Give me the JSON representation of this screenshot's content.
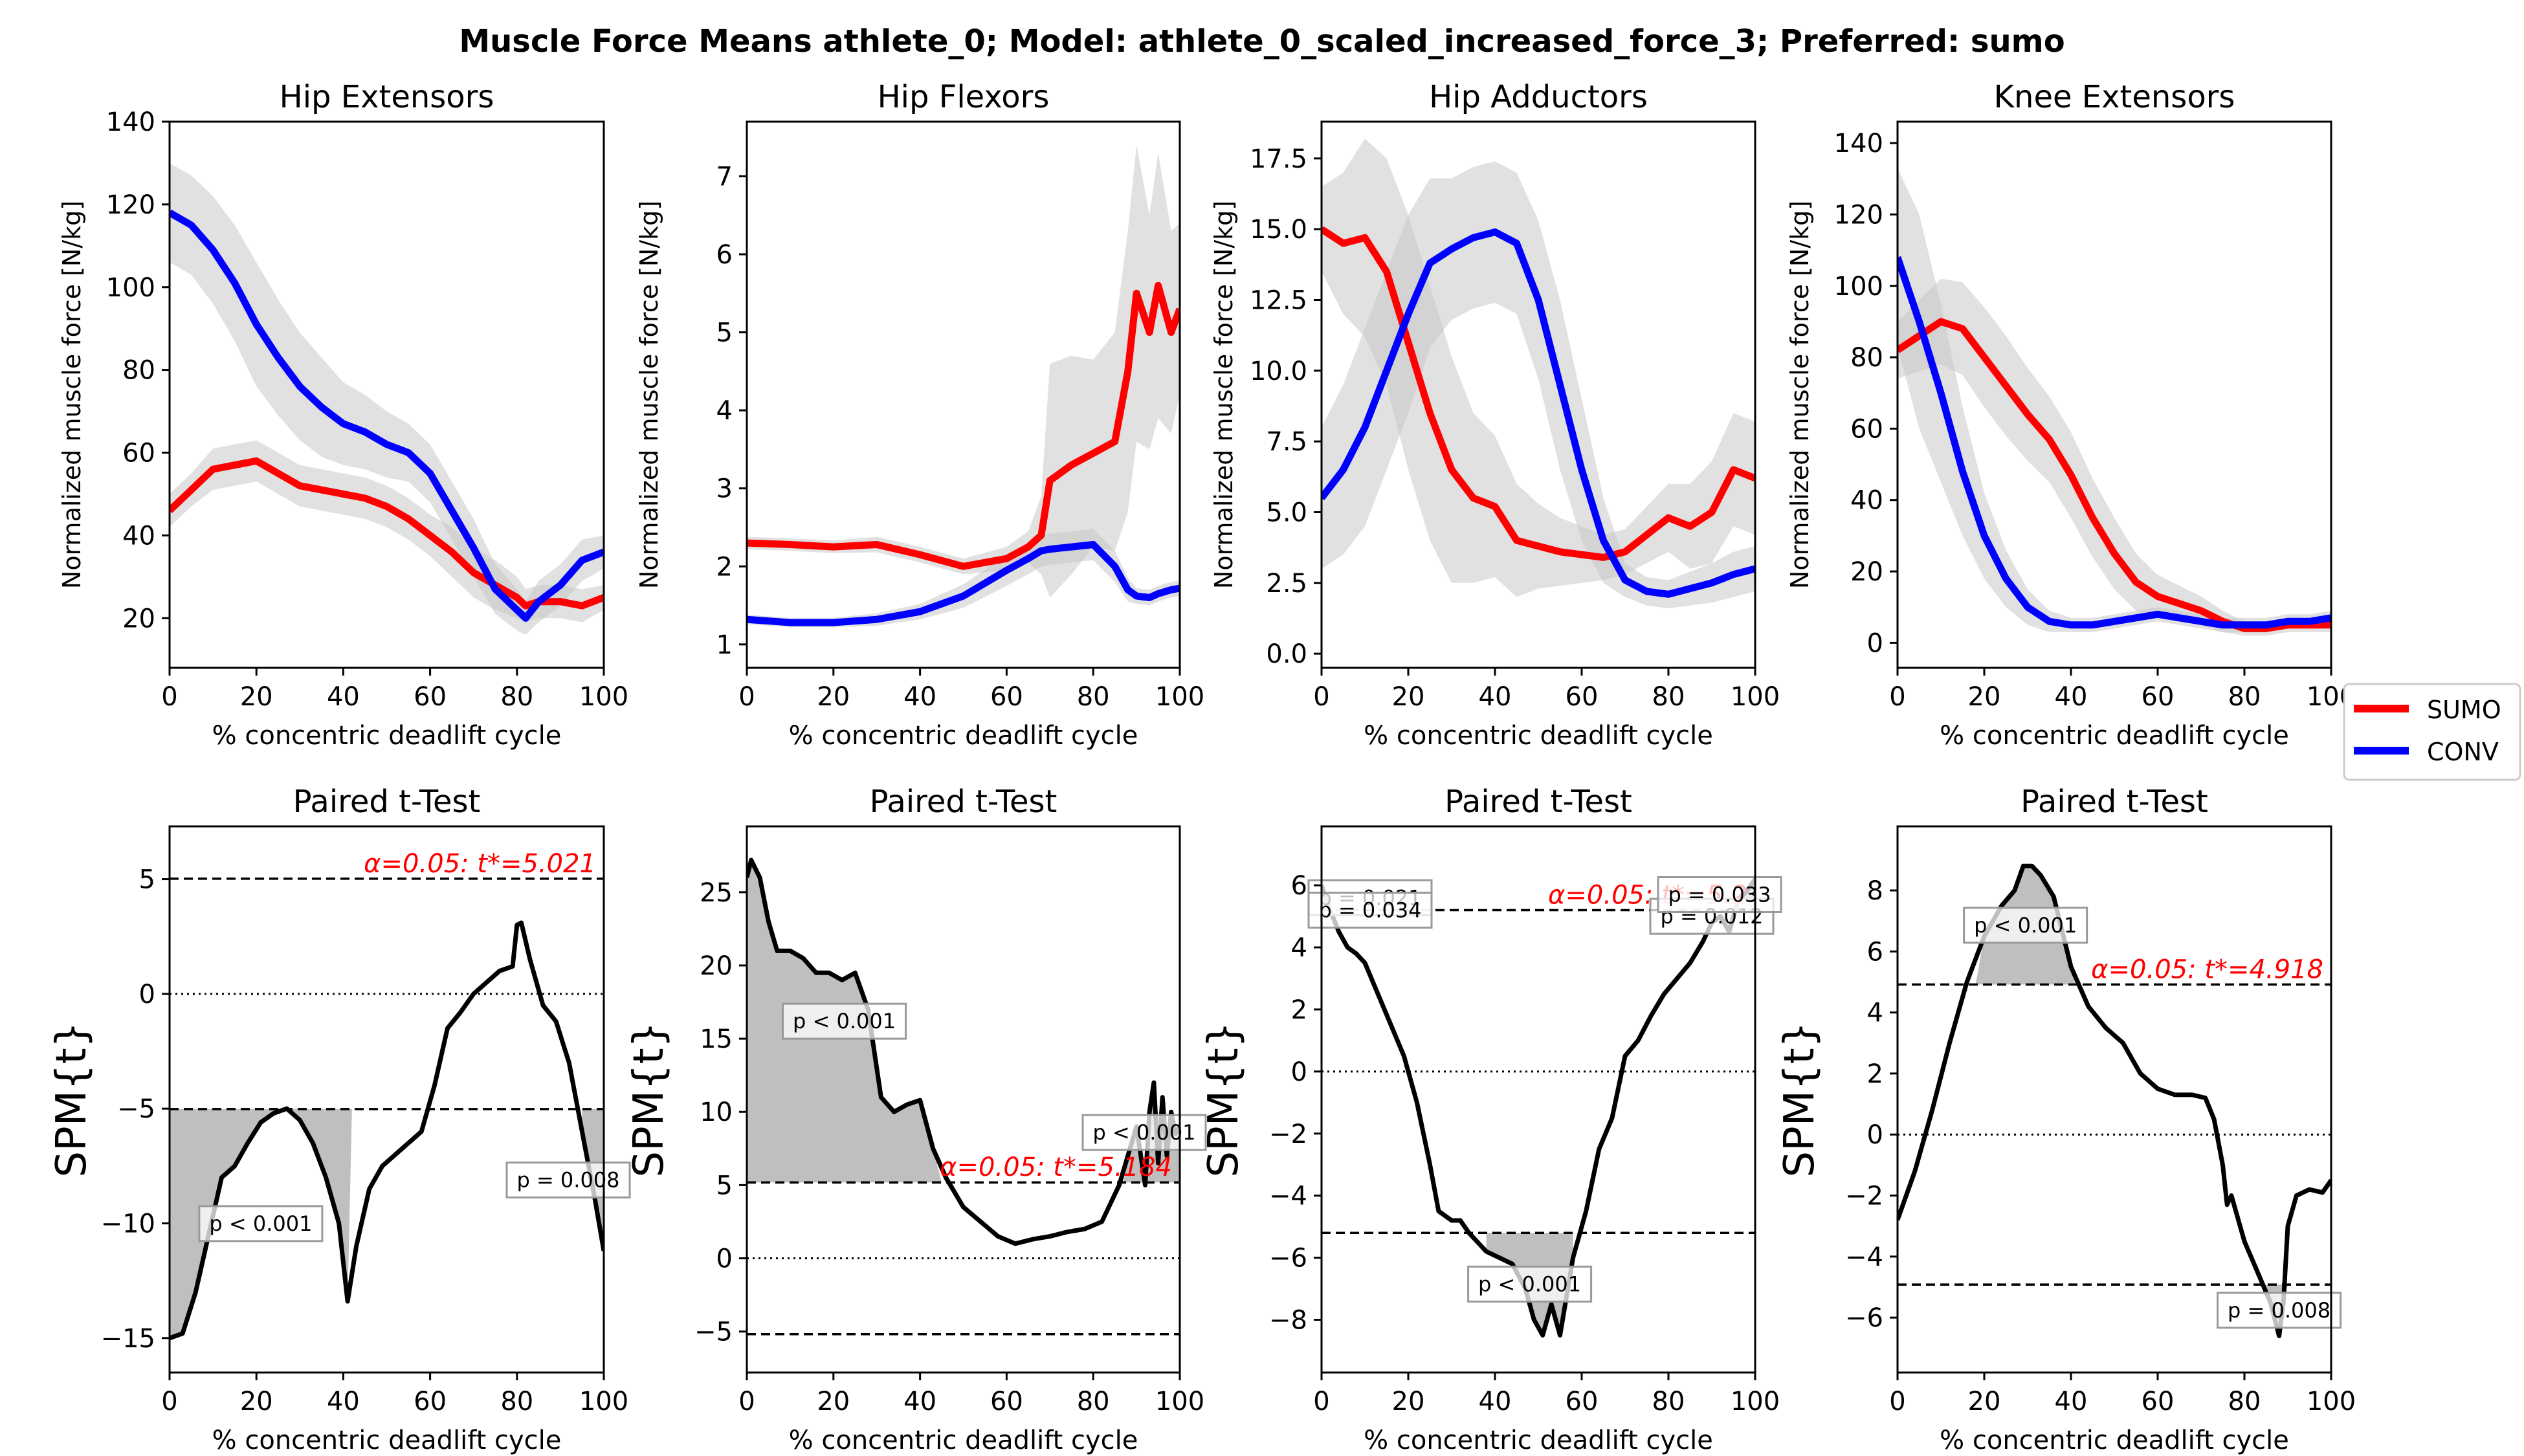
{
  "figure": {
    "title": "Muscle Force Means athlete_0; Model: athlete_0_scaled_increased_force_3; Preferred: sumo"
  },
  "legend": {
    "position": "right-center",
    "entries": [
      {
        "label": "SUMO",
        "color": "#ff0000"
      },
      {
        "label": "CONV",
        "color": "#0000ff"
      }
    ]
  },
  "colors": {
    "sumo": "#ff0000",
    "conv": "#0000ff",
    "band": "#c8c8c8",
    "spm": "#000000",
    "threshold_text": "#ff0000",
    "cluster_fill": "#bfbfbf"
  },
  "chart_data": [
    {
      "type": "line",
      "title": "Hip Extensors",
      "xlabel": "% concentric deadlift cycle",
      "ylabel": "Normalized muscle force [N/kg]",
      "xlim": [
        0,
        100
      ],
      "ylim": [
        8,
        140
      ],
      "xticks": [
        0,
        20,
        40,
        60,
        80,
        100
      ],
      "yticks": [
        20,
        40,
        60,
        80,
        100,
        120,
        140
      ],
      "ytick_labels": [
        "20",
        "40",
        "60",
        "80",
        "100",
        "120",
        "140"
      ],
      "x": [
        0,
        5,
        10,
        15,
        20,
        25,
        30,
        35,
        40,
        45,
        50,
        55,
        60,
        65,
        70,
        75,
        80,
        82,
        85,
        90,
        95,
        100
      ],
      "series": [
        {
          "name": "SUMO",
          "color": "#ff0000",
          "values": [
            46,
            51,
            56,
            57,
            58,
            55,
            52,
            51,
            50,
            49,
            47,
            44,
            40,
            36,
            31,
            28,
            25,
            23,
            24,
            24,
            23,
            25
          ],
          "sd_band": [
            4,
            4,
            5,
            5,
            5,
            5,
            5,
            5,
            5,
            5,
            5,
            5,
            5,
            6,
            6,
            6,
            5,
            4,
            4,
            4,
            4,
            3
          ]
        },
        {
          "name": "CONV",
          "color": "#0000ff",
          "values": [
            118,
            115,
            109,
            101,
            91,
            83,
            76,
            71,
            67,
            65,
            62,
            60,
            55,
            46,
            37,
            27,
            22,
            20,
            24,
            28,
            34,
            36
          ],
          "sd_band": [
            12,
            12,
            13,
            14,
            15,
            14,
            13,
            12,
            10,
            9,
            8,
            7,
            7,
            7,
            7,
            6,
            5,
            4,
            5,
            5,
            5,
            4
          ]
        }
      ]
    },
    {
      "type": "line",
      "title": "Hip Flexors",
      "xlabel": "% concentric deadlift cycle",
      "ylabel": "Normalized muscle force [N/kg]",
      "xlim": [
        0,
        100
      ],
      "ylim": [
        0.7,
        7.7
      ],
      "xticks": [
        0,
        20,
        40,
        60,
        80,
        100
      ],
      "yticks": [
        1,
        2,
        3,
        4,
        5,
        6,
        7
      ],
      "ytick_labels": [
        "1",
        "2",
        "3",
        "4",
        "5",
        "6",
        "7"
      ],
      "x": [
        0,
        10,
        20,
        30,
        40,
        50,
        60,
        65,
        68,
        70,
        75,
        80,
        85,
        88,
        90,
        93,
        95,
        98,
        100
      ],
      "series": [
        {
          "name": "SUMO",
          "color": "#ff0000",
          "values": [
            2.3,
            2.28,
            2.25,
            2.28,
            2.15,
            2.0,
            2.1,
            2.25,
            2.4,
            3.1,
            3.3,
            3.45,
            3.6,
            4.5,
            5.5,
            5.0,
            5.6,
            5.0,
            5.3
          ],
          "sd_band": [
            0.08,
            0.08,
            0.08,
            0.1,
            0.1,
            0.1,
            0.15,
            0.2,
            0.5,
            1.5,
            1.4,
            1.2,
            1.4,
            1.8,
            1.9,
            1.5,
            1.7,
            1.3,
            1.1
          ]
        },
        {
          "name": "CONV",
          "color": "#0000ff",
          "values": [
            1.32,
            1.28,
            1.28,
            1.32,
            1.42,
            1.62,
            1.95,
            2.1,
            2.2,
            2.22,
            2.25,
            2.28,
            2.0,
            1.7,
            1.62,
            1.6,
            1.65,
            1.7,
            1.72
          ],
          "sd_band": [
            0.06,
            0.06,
            0.06,
            0.08,
            0.1,
            0.15,
            0.2,
            0.2,
            0.2,
            0.2,
            0.2,
            0.2,
            0.2,
            0.15,
            0.1,
            0.1,
            0.1,
            0.1,
            0.1
          ]
        }
      ]
    },
    {
      "type": "line",
      "title": "Hip Adductors",
      "xlabel": "% concentric deadlift cycle",
      "ylabel": "Normalized muscle force [N/kg]",
      "xlim": [
        0,
        100
      ],
      "ylim": [
        -0.5,
        18.8
      ],
      "xticks": [
        0,
        20,
        40,
        60,
        80,
        100
      ],
      "yticks": [
        0,
        2.5,
        5,
        7.5,
        10,
        12.5,
        15,
        17.5
      ],
      "ytick_labels": [
        "0.0",
        "2.5",
        "5.0",
        "7.5",
        "10.0",
        "12.5",
        "15.0",
        "17.5"
      ],
      "x": [
        0,
        5,
        10,
        15,
        20,
        25,
        30,
        35,
        40,
        45,
        50,
        55,
        60,
        65,
        70,
        75,
        80,
        85,
        90,
        95,
        100
      ],
      "series": [
        {
          "name": "SUMO",
          "color": "#ff0000",
          "values": [
            15.0,
            14.5,
            14.7,
            13.5,
            11.0,
            8.5,
            6.5,
            5.5,
            5.2,
            4.0,
            3.8,
            3.6,
            3.5,
            3.4,
            3.6,
            4.2,
            4.8,
            4.5,
            5.0,
            6.5,
            6.2
          ],
          "sd_band": [
            1.5,
            2.5,
            3.5,
            4.0,
            4.5,
            4.5,
            4.0,
            3.0,
            2.5,
            2.0,
            1.5,
            1.2,
            1.0,
            0.8,
            0.8,
            1.0,
            1.2,
            1.5,
            1.8,
            2.0,
            2.0
          ]
        },
        {
          "name": "CONV",
          "color": "#0000ff",
          "values": [
            5.5,
            6.5,
            8.0,
            10.0,
            12.0,
            13.8,
            14.3,
            14.7,
            14.9,
            14.5,
            12.5,
            9.5,
            6.5,
            4.0,
            2.6,
            2.2,
            2.1,
            2.3,
            2.5,
            2.8,
            3.0
          ],
          "sd_band": [
            2.5,
            3.0,
            3.5,
            3.5,
            3.5,
            3.0,
            2.5,
            2.5,
            2.5,
            2.5,
            2.8,
            3.0,
            2.5,
            1.5,
            0.6,
            0.5,
            0.5,
            0.6,
            0.7,
            0.8,
            0.8
          ]
        }
      ]
    },
    {
      "type": "line",
      "title": "Knee Extensors",
      "xlabel": "% concentric deadlift cycle",
      "ylabel": "Normalized muscle force [N/kg]",
      "xlim": [
        0,
        100
      ],
      "ylim": [
        -7,
        146
      ],
      "xticks": [
        0,
        20,
        40,
        60,
        80,
        100
      ],
      "yticks": [
        0,
        20,
        40,
        60,
        80,
        100,
        120,
        140
      ],
      "ytick_labels": [
        "0",
        "20",
        "40",
        "60",
        "80",
        "100",
        "120",
        "140"
      ],
      "x": [
        0,
        5,
        10,
        15,
        20,
        25,
        30,
        35,
        40,
        45,
        50,
        55,
        60,
        65,
        70,
        75,
        80,
        85,
        90,
        95,
        100
      ],
      "series": [
        {
          "name": "SUMO",
          "color": "#ff0000",
          "values": [
            82,
            86,
            90,
            88,
            80,
            72,
            64,
            57,
            47,
            35,
            25,
            17,
            13,
            11,
            9,
            6,
            4,
            4,
            5,
            5,
            5
          ],
          "sd_band": [
            8,
            10,
            12,
            13,
            14,
            14,
            13,
            12,
            12,
            11,
            10,
            8,
            6,
            5,
            4,
            3,
            2,
            2,
            2,
            2,
            2
          ]
        },
        {
          "name": "CONV",
          "color": "#0000ff",
          "values": [
            108,
            90,
            70,
            48,
            30,
            18,
            10,
            6,
            5,
            5,
            6,
            7,
            8,
            7,
            6,
            5,
            5,
            5,
            6,
            6,
            7
          ],
          "sd_band": [
            25,
            30,
            25,
            18,
            12,
            8,
            5,
            3,
            2,
            2,
            2,
            2,
            2,
            2,
            2,
            2,
            2,
            2,
            2,
            2,
            2
          ]
        }
      ]
    },
    {
      "type": "line",
      "title": "Paired t-Test",
      "xlabel": "% concentric deadlift cycle",
      "ylabel": "SPM{t}",
      "xlim": [
        0,
        100
      ],
      "ylim": [
        -16.5,
        7.3
      ],
      "xticks": [
        0,
        20,
        40,
        60,
        80,
        100
      ],
      "yticks": [
        -15,
        -10,
        -5,
        0,
        5
      ],
      "ytick_labels": [
        "−15",
        "−10",
        "−5",
        "0",
        "5"
      ],
      "threshold": 5.021,
      "threshold_label": "α=0.05:  t*=5.021",
      "x": [
        0,
        3,
        6,
        9,
        12,
        15,
        18,
        21,
        24,
        27,
        30,
        33,
        36,
        39,
        41,
        43,
        46,
        49,
        52,
        55,
        58,
        61,
        64,
        67,
        70,
        73,
        76,
        79,
        80,
        81,
        83,
        86,
        89,
        92,
        95,
        98,
        100
      ],
      "series": [
        {
          "name": "SPM{t}",
          "color": "#000000",
          "values": [
            -15,
            -14.8,
            -13,
            -10.5,
            -8,
            -7.5,
            -6.5,
            -5.6,
            -5.2,
            -5,
            -5.5,
            -6.5,
            -8,
            -10,
            -13.4,
            -11,
            -8.5,
            -7.5,
            -7,
            -6.5,
            -6,
            -4,
            -1.5,
            -0.8,
            0,
            0.5,
            1,
            1.2,
            3,
            3.1,
            1.5,
            -0.5,
            -1.2,
            -3,
            -6,
            -9,
            -11.2
          ]
        }
      ],
      "clusters": [
        {
          "x_start": 0,
          "x_end": 42,
          "side": "below",
          "label": "p < 0.001"
        },
        {
          "x_start": 95,
          "x_end": 100,
          "side": "below",
          "label": "p = 0.008"
        }
      ]
    },
    {
      "type": "line",
      "title": "Paired t-Test",
      "xlabel": "% concentric deadlift cycle",
      "ylabel": "SPM{t}",
      "xlim": [
        0,
        100
      ],
      "ylim": [
        -7.8,
        29.5
      ],
      "xticks": [
        0,
        20,
        40,
        60,
        80,
        100
      ],
      "yticks": [
        -5,
        0,
        5,
        10,
        15,
        20,
        25
      ],
      "ytick_labels": [
        "−5",
        "0",
        "5",
        "10",
        "15",
        "20",
        "25"
      ],
      "threshold": 5.184,
      "threshold_label": "α=0.05:  t*=5.184",
      "x": [
        0,
        1,
        3,
        5,
        7,
        10,
        13,
        16,
        19,
        22,
        25,
        28,
        31,
        34,
        37,
        40,
        43,
        46,
        50,
        54,
        58,
        62,
        66,
        70,
        74,
        78,
        82,
        86,
        88,
        90,
        92,
        93,
        94,
        95,
        96,
        97,
        98,
        99,
        100
      ],
      "series": [
        {
          "name": "SPM{t}",
          "color": "#000000",
          "values": [
            26,
            27.2,
            26,
            23,
            21,
            21,
            20.5,
            19.5,
            19.5,
            19,
            19.5,
            17,
            11,
            10,
            10.5,
            10.8,
            7.5,
            5.5,
            3.5,
            2.5,
            1.5,
            1,
            1.3,
            1.5,
            1.8,
            2,
            2.5,
            5,
            7,
            9,
            5,
            10,
            12,
            6.5,
            11,
            7,
            10,
            8.5,
            9
          ]
        }
      ],
      "clusters": [
        {
          "x_start": 0,
          "x_end": 45,
          "side": "above",
          "label": "p < 0.001"
        },
        {
          "x_start": 87,
          "x_end": 100,
          "side": "above",
          "label": "p < 0.001"
        }
      ]
    },
    {
      "type": "line",
      "title": "Paired t-Test",
      "xlabel": "% concentric deadlift cycle",
      "ylabel": "SPM{t}",
      "xlim": [
        0,
        100
      ],
      "ylim": [
        -9.7,
        7.9
      ],
      "xticks": [
        0,
        20,
        40,
        60,
        80,
        100
      ],
      "yticks": [
        -8,
        -6,
        -4,
        -2,
        0,
        2,
        4,
        6
      ],
      "ytick_labels": [
        "−8",
        "−6",
        "−4",
        "−2",
        "0",
        "2",
        "4",
        "6"
      ],
      "threshold": 5.2,
      "threshold_label": "α=0.05:  t*=5.2",
      "x": [
        0,
        2,
        4,
        6,
        8,
        10,
        13,
        16,
        19,
        22,
        25,
        27,
        30,
        32,
        34,
        36,
        38,
        41,
        44,
        47,
        49,
        51,
        53,
        55,
        58,
        61,
        64,
        67,
        70,
        73,
        76,
        79,
        82,
        85,
        88,
        90,
        92,
        94,
        96,
        98,
        100
      ],
      "series": [
        {
          "name": "SPM{t}",
          "color": "#000000",
          "values": [
            6,
            5.2,
            4.5,
            4,
            3.8,
            3.5,
            2.5,
            1.5,
            0.5,
            -1,
            -3,
            -4.5,
            -4.8,
            -4.8,
            -5.2,
            -5.5,
            -5.8,
            -6,
            -6.2,
            -7,
            -8,
            -8.5,
            -7.5,
            -8.5,
            -6,
            -4.5,
            -2.5,
            -1.5,
            0.5,
            1,
            1.8,
            2.5,
            3,
            3.5,
            4.2,
            4.8,
            5,
            4.5,
            5.5,
            5.8,
            6.2
          ]
        }
      ],
      "clusters": [
        {
          "x_start": 0,
          "x_end": 2,
          "side": "above",
          "label": "p = 0.021"
        },
        {
          "x_start": 2,
          "x_end": 3,
          "side": "above",
          "label": "p = 0.034"
        },
        {
          "x_start": 38,
          "x_end": 58,
          "side": "below",
          "label": "p < 0.001"
        },
        {
          "x_start": 89,
          "x_end": 91,
          "side": "above",
          "label": "p = 0.012"
        },
        {
          "x_start": 95,
          "x_end": 100,
          "side": "above",
          "label": "p = 0.033"
        }
      ]
    },
    {
      "type": "line",
      "title": "Paired t-Test",
      "xlabel": "% concentric deadlift cycle",
      "ylabel": "SPM{t}",
      "xlim": [
        0,
        100
      ],
      "ylim": [
        -7.8,
        10.1
      ],
      "xticks": [
        0,
        20,
        40,
        60,
        80,
        100
      ],
      "yticks": [
        -6,
        -4,
        -2,
        0,
        2,
        4,
        6,
        8
      ],
      "ytick_labels": [
        "−6",
        "−4",
        "−2",
        "0",
        "2",
        "4",
        "6",
        "8"
      ],
      "threshold": 4.918,
      "threshold_label": "α=0.05:  t*=4.918",
      "x": [
        0,
        4,
        8,
        12,
        16,
        20,
        24,
        27,
        29,
        31,
        33,
        36,
        40,
        44,
        48,
        52,
        56,
        60,
        64,
        68,
        71,
        73,
        75,
        76,
        77,
        78,
        80,
        83,
        86,
        88,
        89,
        90,
        92,
        95,
        98,
        100
      ],
      "series": [
        {
          "name": "SPM{t}",
          "color": "#000000",
          "values": [
            -2.8,
            -1.2,
            0.8,
            3,
            5,
            6.5,
            7.5,
            8,
            8.8,
            8.8,
            8.5,
            7.8,
            5.5,
            4.2,
            3.5,
            3,
            2,
            1.5,
            1.3,
            1.3,
            1.2,
            0.5,
            -1,
            -2.3,
            -2,
            -2.5,
            -3.5,
            -4.5,
            -5.5,
            -6.6,
            -5.5,
            -3,
            -2,
            -1.8,
            -1.9,
            -1.5
          ]
        }
      ],
      "clusters": [
        {
          "x_start": 18,
          "x_end": 41,
          "side": "above",
          "label": "p < 0.001"
        },
        {
          "x_start": 85,
          "x_end": 91,
          "side": "below",
          "label": "p = 0.008"
        }
      ]
    }
  ]
}
